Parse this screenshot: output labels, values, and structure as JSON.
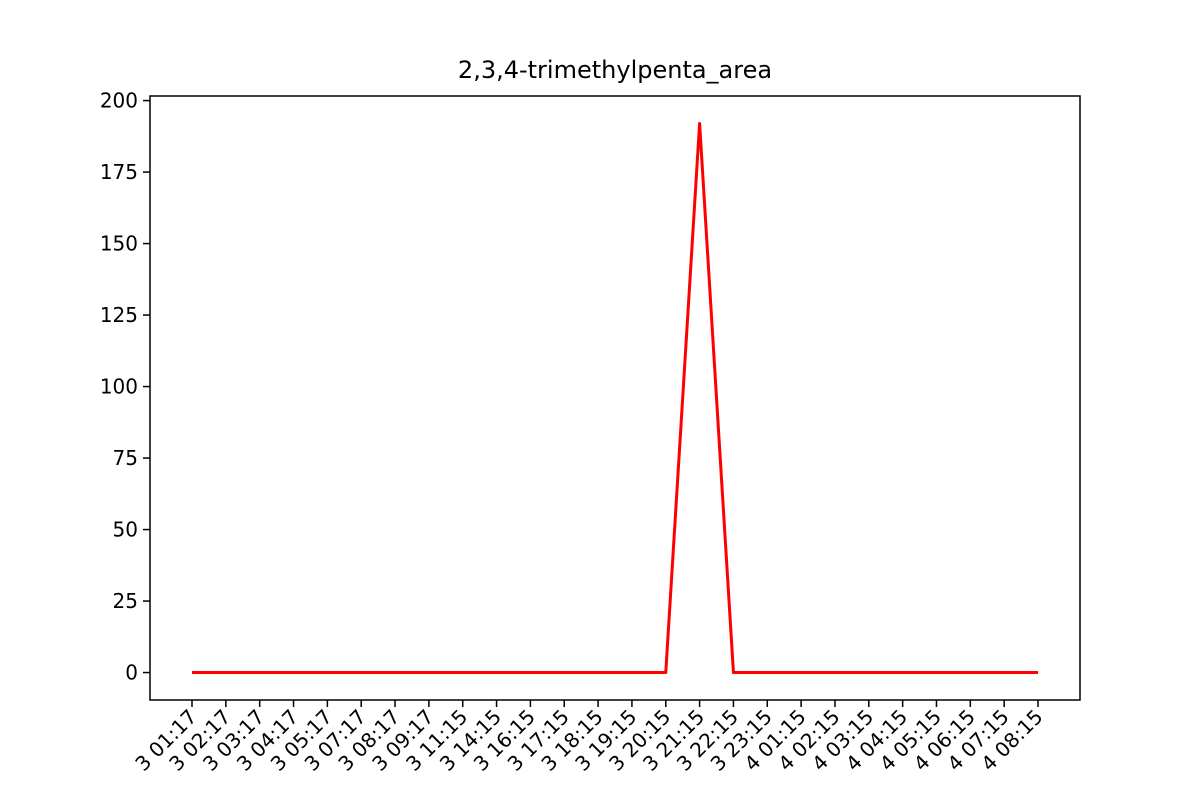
{
  "chart_data": {
    "type": "line",
    "title": "2,3,4-trimethylpenta_area",
    "xlabel": "",
    "ylabel": "",
    "x": [
      "3 01:17",
      "3 02:17",
      "3 03:17",
      "3 04:17",
      "3 05:17",
      "3 07:17",
      "3 08:17",
      "3 09:17",
      "3 11:15",
      "3 14:15",
      "3 16:15",
      "3 17:15",
      "3 18:15",
      "3 19:15",
      "3 20:15",
      "3 21:15",
      "3 22:15",
      "3 23:15",
      "4 01:15",
      "4 02:15",
      "4 03:15",
      "4 04:15",
      "4 05:15",
      "4 06:15",
      "4 07:15",
      "4 08:15"
    ],
    "series": [
      {
        "values": [
          0,
          0,
          0,
          0,
          0,
          0,
          0,
          0,
          0,
          0,
          0,
          0,
          0,
          0,
          0,
          192,
          0,
          0,
          0,
          0,
          0,
          0,
          0,
          0,
          0,
          0
        ],
        "color": "#ff0000"
      }
    ],
    "yticks": [
      0,
      25,
      50,
      75,
      100,
      125,
      150,
      175,
      200
    ],
    "ylim": [
      -9.6,
      201.6
    ],
    "grid": false,
    "legend": "none"
  }
}
